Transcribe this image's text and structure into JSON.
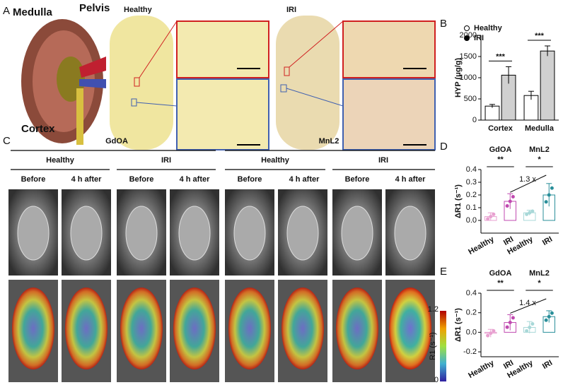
{
  "panels": {
    "a": {
      "label": "A",
      "medulla": "Medulla",
      "pelvis": "Pelvis",
      "cortex": "Cortex",
      "healthy": "Healthy",
      "iri": "IRI"
    },
    "c": {
      "label": "C",
      "agent1": "GdOA",
      "agent2": "MnL2",
      "groups": [
        "Healthy",
        "IRI",
        "Healthy",
        "IRI"
      ],
      "times": [
        "Before",
        "4 h after",
        "Before",
        "4 h after",
        "Before",
        "4 h after",
        "Before",
        "4 h after"
      ],
      "colorbar_max": "1.2",
      "colorbar_min": "0",
      "colorbar_label": "R1 (s⁻¹)"
    },
    "b": {
      "label": "B"
    },
    "d": {
      "label": "D"
    },
    "e": {
      "label": "E"
    }
  },
  "chart_data": [
    {
      "type": "bar",
      "y_label": "HYP (μg/g)",
      "categories": [
        "Cortex",
        "Medulla"
      ],
      "series": [
        {
          "name": "Healthy",
          "color": "#ffffff",
          "marker": "open",
          "values": [
            330,
            580
          ],
          "errors": [
            40,
            100
          ]
        },
        {
          "name": "IRI",
          "color": "#d0d0d0",
          "marker": "filled",
          "values": [
            1060,
            1630
          ],
          "errors": [
            200,
            120
          ]
        }
      ],
      "ylim": [
        0,
        2000
      ],
      "yticks": [
        0,
        500,
        1000,
        1500,
        2000
      ],
      "legend": "upper-left",
      "annotations": [
        "***",
        "***"
      ]
    },
    {
      "type": "bar",
      "y_label": "ΔR1 (s⁻¹)",
      "categories": [
        "Healthy",
        "IRI",
        "Healthy",
        "IRI"
      ],
      "groups": [
        "GdOA",
        "MnL2"
      ],
      "values": [
        0.03,
        0.15,
        0.06,
        0.2
      ],
      "errors": [
        0.03,
        0.06,
        0.02,
        0.09
      ],
      "colors": [
        "#e8a0d0",
        "#c04ab0",
        "#a8d8d8",
        "#2a8f9a"
      ],
      "ylim": [
        -0.1,
        0.4
      ],
      "yticks": [
        {
          "value": 0,
          "label": "0.0"
        },
        0.1,
        0.2,
        0.3,
        0.4
      ],
      "annotations": [
        "**",
        "*",
        "1.3 x"
      ]
    },
    {
      "type": "bar",
      "y_label": "ΔR1 (s⁻¹)",
      "categories": [
        "Healthy",
        "IRI",
        "Healthy",
        "IRI"
      ],
      "groups": [
        "GdOA",
        "MnL2"
      ],
      "values": [
        -0.01,
        0.1,
        0.05,
        0.16
      ],
      "errors": [
        0.04,
        0.08,
        0.06,
        0.06
      ],
      "colors": [
        "#e8a0d0",
        "#c04ab0",
        "#a8d8d8",
        "#2a8f9a"
      ],
      "ylim": [
        -0.25,
        0.4
      ],
      "yticks": [
        -0.2,
        {
          "value": 0,
          "label": "0.0"
        },
        0.2,
        0.4
      ],
      "annotations": [
        "**",
        "*",
        "1.4 x"
      ]
    }
  ]
}
